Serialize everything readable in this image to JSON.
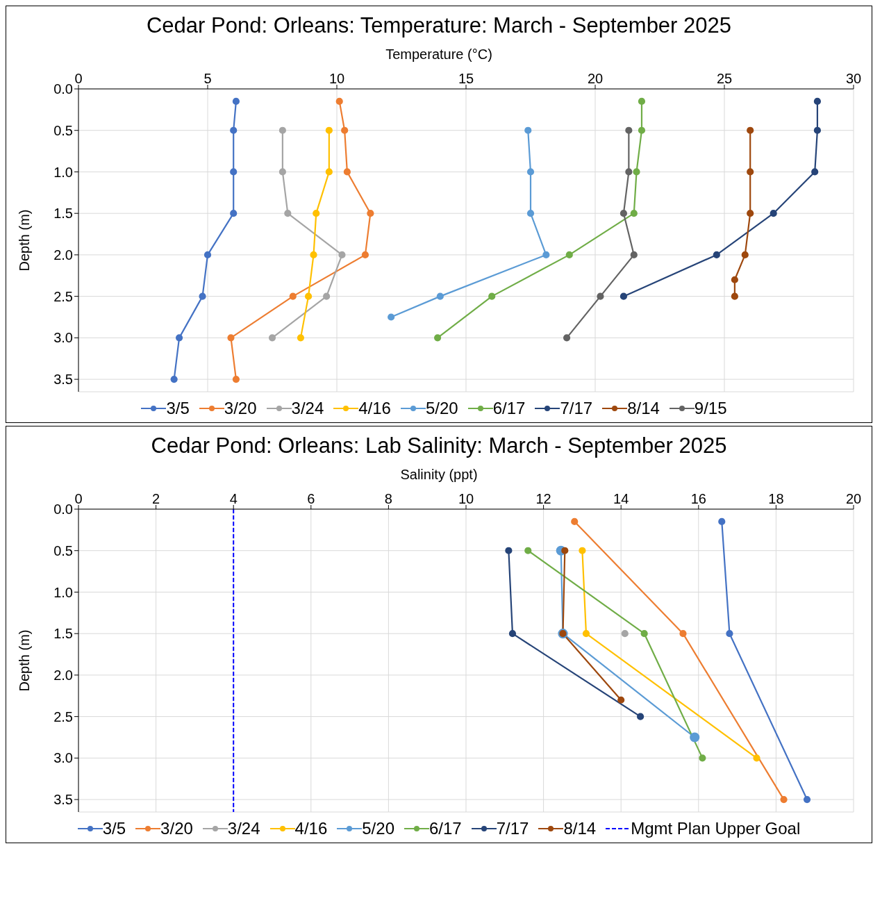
{
  "chart_data": [
    {
      "type": "line",
      "title": "Cedar Pond:  Orleans:  Temperature:  March - September 2025",
      "xlabel": "Temperature (°C)",
      "ylabel": "Depth (m)",
      "xlim": [
        0,
        30
      ],
      "xticks": [
        0,
        5,
        10,
        15,
        20,
        25,
        30
      ],
      "ylim": [
        3.65,
        0
      ],
      "yticks": [
        {
          "value": 0,
          "label": "0.0"
        },
        {
          "value": 0.5,
          "label": "0.5"
        },
        {
          "value": 1,
          "label": "1.0"
        },
        {
          "value": 1.5,
          "label": "1.5"
        },
        {
          "value": 2,
          "label": "2.0"
        },
        {
          "value": 2.5,
          "label": "2.5"
        },
        {
          "value": 3,
          "label": "3.0"
        },
        {
          "value": 3.5,
          "label": "3.5"
        }
      ],
      "grid": true,
      "legend": "bottom",
      "marker": "circle",
      "line_style": "solid",
      "series": [
        {
          "name": "3/5",
          "color": "#4472c4",
          "x": [
            6.1,
            6.0,
            6.0,
            6.0,
            5.0,
            4.8,
            3.9,
            3.7
          ],
          "values": [
            0.15,
            0.5,
            1,
            1.5,
            2,
            2.5,
            3,
            3.5
          ]
        },
        {
          "name": "3/20",
          "color": "#ed7d31",
          "x": [
            10.1,
            10.3,
            10.4,
            11.3,
            11.1,
            8.3,
            5.9,
            6.1
          ],
          "values": [
            0.15,
            0.5,
            1,
            1.5,
            2,
            2.5,
            3,
            3.5
          ]
        },
        {
          "name": "3/24",
          "color": "#a5a5a5",
          "x": [
            7.9,
            7.9,
            8.1,
            10.2,
            9.6,
            7.5
          ],
          "values": [
            0.5,
            1,
            1.5,
            2,
            2.5,
            3
          ]
        },
        {
          "name": "4/16",
          "color": "#ffc000",
          "x": [
            9.7,
            9.7,
            9.2,
            9.1,
            8.9,
            8.6
          ],
          "values": [
            0.5,
            1,
            1.5,
            2,
            2.5,
            3
          ]
        },
        {
          "name": "5/20",
          "color": "#5b9bd5",
          "x": [
            17.4,
            17.5,
            17.5,
            18.1,
            14.0,
            12.1
          ],
          "values": [
            0.5,
            1,
            1.5,
            2,
            2.5,
            2.75
          ]
        },
        {
          "name": "6/17",
          "color": "#70ad47",
          "x": [
            21.8,
            21.8,
            21.6,
            21.5,
            19.0,
            16.0,
            13.9
          ],
          "values": [
            0.15,
            0.5,
            1,
            1.5,
            2,
            2.5,
            3
          ]
        },
        {
          "name": "7/17",
          "color": "#264478",
          "x": [
            28.6,
            28.6,
            28.5,
            26.9,
            24.7,
            21.1
          ],
          "values": [
            0.15,
            0.5,
            1,
            1.5,
            2,
            2.5
          ]
        },
        {
          "name": "8/14",
          "color": "#9e480e",
          "x": [
            26.0,
            26.0,
            26.0,
            25.8,
            25.4,
            25.4
          ],
          "values": [
            0.5,
            1,
            1.5,
            2,
            2.3,
            2.5
          ]
        },
        {
          "name": "9/15",
          "color": "#636363",
          "x": [
            21.3,
            21.3,
            21.1,
            21.5,
            20.2,
            18.9
          ],
          "values": [
            0.5,
            1,
            1.5,
            2,
            2.5,
            3
          ]
        }
      ]
    },
    {
      "type": "line",
      "title": "Cedar Pond:  Orleans:  Lab Salinity:  March - September 2025",
      "xlabel": "Salinity (ppt)",
      "ylabel": "Depth (m)",
      "xlim": [
        0,
        20
      ],
      "xticks": [
        0,
        2,
        4,
        6,
        8,
        10,
        12,
        14,
        16,
        18,
        20
      ],
      "ylim": [
        3.65,
        0
      ],
      "yticks": [
        {
          "value": 0,
          "label": "0.0"
        },
        {
          "value": 0.5,
          "label": "0.5"
        },
        {
          "value": 1,
          "label": "1.0"
        },
        {
          "value": 1.5,
          "label": "1.5"
        },
        {
          "value": 2,
          "label": "2.0"
        },
        {
          "value": 2.5,
          "label": "2.5"
        },
        {
          "value": 3,
          "label": "3.0"
        },
        {
          "value": 3.5,
          "label": "3.5"
        }
      ],
      "grid": true,
      "legend": "bottom",
      "marker": "circle",
      "line_style": "solid",
      "series": [
        {
          "name": "3/5",
          "color": "#4472c4",
          "x": [
            16.6,
            16.8,
            18.8
          ],
          "values": [
            0.15,
            1.5,
            3.5
          ]
        },
        {
          "name": "3/20",
          "color": "#ed7d31",
          "x": [
            12.8,
            15.6,
            18.2
          ],
          "values": [
            0.15,
            1.5,
            3.5
          ]
        },
        {
          "name": "3/24",
          "color": "#a5a5a5",
          "x": [
            14.1
          ],
          "values": [
            1.5
          ]
        },
        {
          "name": "4/16",
          "color": "#ffc000",
          "x": [
            13.0,
            13.1,
            17.5
          ],
          "values": [
            0.5,
            1.5,
            3
          ]
        },
        {
          "name": "5/20",
          "color": "#5b9bd5",
          "x": [
            12.45,
            12.5,
            15.9
          ],
          "values": [
            0.5,
            1.5,
            2.75
          ]
        },
        {
          "name": "6/17",
          "color": "#70ad47",
          "x": [
            11.6,
            14.6,
            16.1
          ],
          "values": [
            0.5,
            1.5,
            3
          ]
        },
        {
          "name": "7/17",
          "color": "#264478",
          "x": [
            11.1,
            11.2,
            14.5
          ],
          "values": [
            0.5,
            1.5,
            2.5
          ]
        },
        {
          "name": "8/14",
          "color": "#9e480e",
          "x": [
            12.55,
            12.5,
            14.0
          ],
          "values": [
            0.5,
            1.5,
            2.3
          ]
        }
      ],
      "ref_lines": [
        {
          "axis": "x",
          "value": 4,
          "label": "Mgmt Plan Upper Goal",
          "color": "#0000ff",
          "line_style": "dashed"
        }
      ]
    }
  ]
}
